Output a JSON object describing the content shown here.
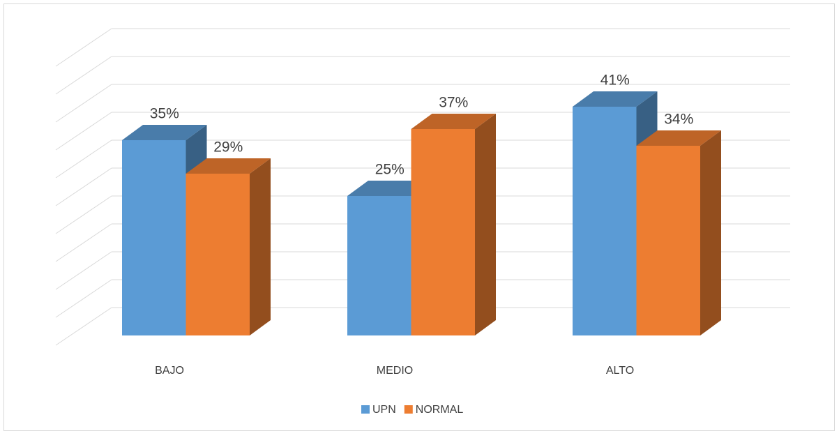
{
  "chart_data": {
    "type": "bar3d",
    "categories": [
      "BAJO",
      "MEDIO",
      "ALTO"
    ],
    "series": [
      {
        "name": "UPN",
        "color": "#5b9bd5",
        "values": [
          35,
          25,
          41
        ],
        "value_labels": [
          "35%",
          "25%",
          "41%"
        ]
      },
      {
        "name": "NORMAL",
        "color": "#ed7d31",
        "values": [
          29,
          37,
          34
        ],
        "value_labels": [
          "29%",
          "37%",
          "34%"
        ]
      }
    ],
    "ylim": [
      0,
      50
    ],
    "yticks": [
      0,
      5,
      10,
      15,
      20,
      25,
      30,
      35,
      40,
      45,
      50
    ],
    "grid": true,
    "legend": "bottom"
  }
}
